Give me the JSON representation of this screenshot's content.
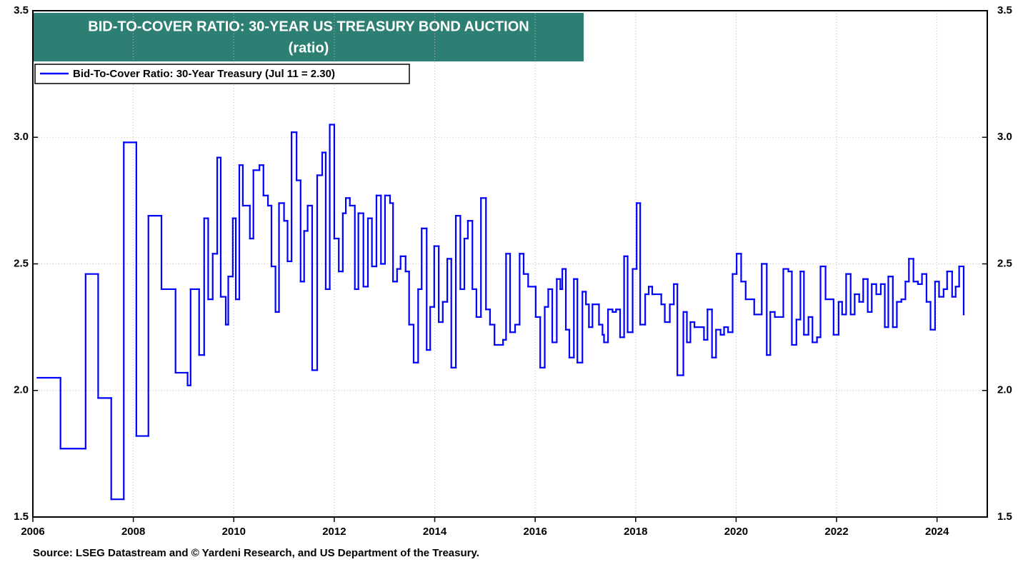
{
  "chart_data": {
    "type": "step-line",
    "title": "BID-TO-COVER RATIO: 30-YEAR US TREASURY BOND AUCTION",
    "subtitle": "(ratio)",
    "source": "Source: LSEG Datastream and © Yardeni Research, and US Department of the Treasury.",
    "xlim": [
      2006,
      2025
    ],
    "xticks": [
      2006,
      2008,
      2010,
      2012,
      2014,
      2016,
      2018,
      2020,
      2022,
      2024
    ],
    "ylim": [
      1.5,
      3.5
    ],
    "yticks": [
      1.5,
      {
        "value": 2,
        "label": "2.0"
      },
      2.5,
      {
        "value": 3,
        "label": "3.0"
      },
      3.5
    ],
    "grid": true,
    "series": [
      {
        "name": "Bid-To-Cover Ratio: 30-Year Treasury (Jul 11 = 2.30)",
        "color": "#0000ff",
        "x": [
          2006.09,
          2006.55,
          2007.05,
          2007.3,
          2007.56,
          2007.81,
          2008.06,
          2008.3,
          2008.56,
          2008.84,
          2009.08,
          2009.14,
          2009.31,
          2009.41,
          2009.49,
          2009.58,
          2009.67,
          2009.74,
          2009.84,
          2009.89,
          2009.98,
          2010.04,
          2010.11,
          2010.18,
          2010.32,
          2010.39,
          2010.51,
          2010.59,
          2010.68,
          2010.75,
          2010.83,
          2010.9,
          2011.0,
          2011.07,
          2011.15,
          2011.25,
          2011.33,
          2011.4,
          2011.47,
          2011.56,
          2011.66,
          2011.76,
          2011.83,
          2011.91,
          2012.0,
          2012.09,
          2012.17,
          2012.23,
          2012.31,
          2012.41,
          2012.48,
          2012.58,
          2012.67,
          2012.75,
          2012.84,
          2012.93,
          2013.01,
          2013.11,
          2013.17,
          2013.25,
          2013.32,
          2013.42,
          2013.49,
          2013.58,
          2013.67,
          2013.74,
          2013.84,
          2013.91,
          2013.99,
          2014.08,
          2014.16,
          2014.25,
          2014.33,
          2014.42,
          2014.51,
          2014.59,
          2014.66,
          2014.75,
          2014.83,
          2014.92,
          2015.02,
          2015.1,
          2015.19,
          2015.36,
          2015.42,
          2015.5,
          2015.6,
          2015.69,
          2015.77,
          2015.86,
          2016.01,
          2016.1,
          2016.19,
          2016.26,
          2016.34,
          2016.43,
          2016.5,
          2016.54,
          2016.61,
          2016.68,
          2016.77,
          2016.84,
          2016.94,
          2017.01,
          2017.07,
          2017.14,
          2017.27,
          2017.34,
          2017.37,
          2017.45,
          2017.54,
          2017.61,
          2017.69,
          2017.77,
          2017.84,
          2017.94,
          2018.02,
          2018.09,
          2018.19,
          2018.26,
          2018.33,
          2018.51,
          2018.58,
          2018.68,
          2018.76,
          2018.83,
          2018.95,
          2019.02,
          2019.09,
          2019.17,
          2019.36,
          2019.43,
          2019.52,
          2019.6,
          2019.69,
          2019.76,
          2019.84,
          2019.93,
          2020.01,
          2020.1,
          2020.19,
          2020.36,
          2020.51,
          2020.61,
          2020.68,
          2020.77,
          2020.94,
          2021.04,
          2021.11,
          2021.2,
          2021.28,
          2021.35,
          2021.44,
          2021.52,
          2021.61,
          2021.68,
          2021.78,
          2021.94,
          2022.04,
          2022.11,
          2022.19,
          2022.28,
          2022.36,
          2022.45,
          2022.53,
          2022.62,
          2022.7,
          2022.79,
          2022.88,
          2022.96,
          2023.03,
          2023.12,
          2023.2,
          2023.29,
          2023.37,
          2023.44,
          2023.53,
          2023.62,
          2023.7,
          2023.79,
          2023.87,
          2023.96,
          2024.04,
          2024.13,
          2024.2,
          2024.3,
          2024.37,
          2024.44,
          2024.53
        ],
        "values": [
          2.05,
          1.77,
          2.46,
          1.97,
          1.57,
          2.98,
          1.82,
          2.69,
          2.4,
          2.07,
          2.02,
          2.4,
          2.14,
          2.68,
          2.36,
          2.54,
          2.92,
          2.37,
          2.26,
          2.45,
          2.68,
          2.36,
          2.89,
          2.73,
          2.6,
          2.87,
          2.89,
          2.77,
          2.73,
          2.49,
          2.31,
          2.74,
          2.67,
          2.51,
          3.02,
          2.83,
          2.43,
          2.63,
          2.73,
          2.08,
          2.85,
          2.94,
          2.4,
          3.05,
          2.6,
          2.47,
          2.7,
          2.76,
          2.73,
          2.4,
          2.7,
          2.41,
          2.68,
          2.49,
          2.77,
          2.5,
          2.77,
          2.74,
          2.43,
          2.48,
          2.53,
          2.47,
          2.26,
          2.11,
          2.4,
          2.64,
          2.16,
          2.33,
          2.57,
          2.27,
          2.35,
          2.52,
          2.09,
          2.69,
          2.4,
          2.6,
          2.67,
          2.4,
          2.29,
          2.76,
          2.32,
          2.26,
          2.18,
          2.2,
          2.54,
          2.23,
          2.26,
          2.54,
          2.46,
          2.41,
          2.29,
          2.09,
          2.33,
          2.4,
          2.19,
          2.44,
          2.4,
          2.48,
          2.24,
          2.13,
          2.44,
          2.11,
          2.39,
          2.34,
          2.25,
          2.34,
          2.26,
          2.22,
          2.19,
          2.32,
          2.31,
          2.32,
          2.21,
          2.53,
          2.23,
          2.48,
          2.74,
          2.26,
          2.38,
          2.41,
          2.38,
          2.34,
          2.27,
          2.34,
          2.42,
          2.06,
          2.31,
          2.19,
          2.27,
          2.25,
          2.2,
          2.32,
          2.13,
          2.24,
          2.22,
          2.25,
          2.23,
          2.46,
          2.54,
          2.43,
          2.36,
          2.3,
          2.5,
          2.14,
          2.31,
          2.29,
          2.48,
          2.47,
          2.18,
          2.28,
          2.47,
          2.22,
          2.29,
          2.19,
          2.21,
          2.49,
          2.36,
          2.22,
          2.35,
          2.3,
          2.46,
          2.3,
          2.38,
          2.35,
          2.44,
          2.31,
          2.42,
          2.38,
          2.42,
          2.25,
          2.45,
          2.25,
          2.35,
          2.36,
          2.43,
          2.52,
          2.43,
          2.42,
          2.46,
          2.35,
          2.24,
          2.43,
          2.37,
          2.4,
          2.47,
          2.37,
          2.41,
          2.49,
          2.3
        ]
      }
    ]
  }
}
